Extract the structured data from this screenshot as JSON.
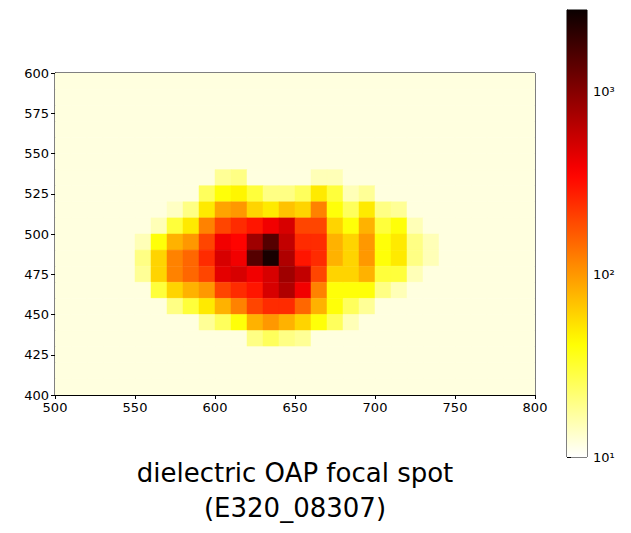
{
  "chart_data": {
    "type": "heatmap",
    "title": "dielectric OAP focal spot\n(E320_08307)",
    "x": [
      505,
      515,
      525,
      535,
      545,
      555,
      565,
      575,
      585,
      595,
      605,
      615,
      625,
      635,
      645,
      655,
      665,
      675,
      685,
      695,
      705,
      715,
      725,
      735,
      745,
      755,
      765,
      775,
      785,
      795
    ],
    "y": [
      595,
      585,
      575,
      565,
      555,
      545,
      535,
      525,
      515,
      505,
      495,
      485,
      475,
      465,
      455,
      445,
      435,
      425,
      415,
      405
    ],
    "z": [
      [
        12,
        12,
        12,
        12,
        12,
        12,
        12,
        12,
        12,
        12,
        12,
        12,
        12,
        12,
        12,
        12,
        12,
        12,
        12,
        12,
        12,
        12,
        12,
        12,
        12,
        12,
        12,
        12,
        12,
        12
      ],
      [
        12,
        12,
        12,
        12,
        12,
        12,
        12,
        12,
        12,
        12,
        12,
        12,
        12,
        12,
        12,
        12,
        12,
        12,
        12,
        12,
        12,
        12,
        12,
        12,
        12,
        12,
        12,
        12,
        12,
        12
      ],
      [
        12,
        12,
        12,
        12,
        12,
        12,
        12,
        12,
        12,
        12,
        12,
        12,
        12,
        12,
        12,
        12,
        12,
        12,
        12,
        12,
        12,
        12,
        12,
        12,
        12,
        12,
        12,
        12,
        12,
        12
      ],
      [
        12,
        12,
        12,
        12,
        12,
        12,
        12,
        12,
        12,
        12,
        12,
        12,
        12,
        12,
        12,
        12,
        12,
        12,
        12,
        12,
        12,
        12,
        12,
        12,
        12,
        12,
        12,
        12,
        12,
        12
      ],
      [
        12,
        12,
        12,
        12,
        12,
        12,
        12,
        12,
        12,
        12,
        12,
        12,
        12,
        12,
        12,
        12,
        12,
        12,
        12,
        12,
        12,
        12,
        12,
        12,
        12,
        12,
        12,
        12,
        12,
        12
      ],
      [
        12,
        12,
        12,
        12,
        12,
        12,
        12,
        12,
        12,
        12,
        12,
        12,
        12,
        12,
        12,
        12,
        12,
        12,
        12,
        12,
        12,
        12,
        12,
        12,
        12,
        12,
        12,
        12,
        12,
        12
      ],
      [
        12,
        12,
        12,
        12,
        12,
        12,
        12,
        12,
        12,
        12,
        18,
        20,
        12,
        12,
        12,
        12,
        15,
        15,
        12,
        12,
        12,
        12,
        12,
        12,
        12,
        12,
        12,
        12,
        12,
        12
      ],
      [
        12,
        12,
        12,
        12,
        12,
        12,
        12,
        12,
        12,
        25,
        40,
        45,
        30,
        20,
        20,
        25,
        50,
        30,
        15,
        18,
        12,
        12,
        12,
        12,
        12,
        12,
        12,
        12,
        12,
        12
      ],
      [
        12,
        12,
        12,
        12,
        12,
        12,
        12,
        14,
        20,
        50,
        90,
        100,
        60,
        50,
        70,
        60,
        120,
        40,
        25,
        50,
        20,
        18,
        12,
        12,
        12,
        12,
        12,
        12,
        12,
        12
      ],
      [
        12,
        12,
        12,
        12,
        12,
        12,
        15,
        30,
        50,
        120,
        200,
        250,
        300,
        400,
        500,
        200,
        200,
        60,
        40,
        80,
        30,
        40,
        15,
        12,
        12,
        12,
        12,
        12,
        12,
        12
      ],
      [
        12,
        12,
        12,
        12,
        12,
        15,
        40,
        80,
        100,
        200,
        400,
        350,
        800,
        1500,
        600,
        250,
        250,
        80,
        60,
        100,
        40,
        50,
        20,
        15,
        12,
        12,
        12,
        12,
        12,
        12
      ],
      [
        12,
        12,
        12,
        12,
        12,
        20,
        60,
        120,
        150,
        250,
        500,
        400,
        1500,
        2500,
        700,
        300,
        250,
        80,
        60,
        100,
        40,
        50,
        20,
        15,
        12,
        12,
        12,
        12,
        12,
        12
      ],
      [
        12,
        12,
        12,
        12,
        12,
        18,
        60,
        120,
        150,
        200,
        450,
        500,
        400,
        500,
        800,
        600,
        200,
        60,
        60,
        80,
        30,
        30,
        15,
        12,
        12,
        12,
        12,
        12,
        12,
        12
      ],
      [
        12,
        12,
        12,
        12,
        12,
        12,
        30,
        60,
        80,
        100,
        200,
        250,
        300,
        500,
        700,
        400,
        120,
        40,
        40,
        40,
        20,
        15,
        12,
        12,
        12,
        12,
        12,
        12,
        12,
        12
      ],
      [
        12,
        12,
        12,
        12,
        12,
        12,
        12,
        20,
        30,
        50,
        80,
        120,
        200,
        250,
        250,
        150,
        80,
        40,
        25,
        18,
        12,
        12,
        12,
        12,
        12,
        12,
        12,
        12,
        12,
        12
      ],
      [
        12,
        12,
        12,
        12,
        12,
        12,
        12,
        12,
        12,
        18,
        25,
        40,
        80,
        100,
        80,
        60,
        40,
        25,
        15,
        12,
        12,
        12,
        12,
        12,
        12,
        12,
        12,
        12,
        12,
        12
      ],
      [
        12,
        12,
        12,
        12,
        12,
        12,
        12,
        12,
        12,
        12,
        12,
        12,
        20,
        25,
        20,
        18,
        12,
        12,
        12,
        12,
        12,
        12,
        12,
        12,
        12,
        12,
        12,
        12,
        12,
        12
      ],
      [
        12,
        12,
        12,
        12,
        12,
        12,
        12,
        12,
        12,
        12,
        12,
        12,
        12,
        12,
        12,
        12,
        12,
        12,
        12,
        12,
        12,
        12,
        12,
        12,
        12,
        12,
        12,
        12,
        12,
        12
      ],
      [
        12,
        12,
        12,
        12,
        12,
        12,
        12,
        12,
        12,
        12,
        12,
        12,
        12,
        12,
        12,
        12,
        12,
        12,
        12,
        12,
        12,
        12,
        12,
        12,
        12,
        12,
        12,
        12,
        12,
        12
      ],
      [
        12,
        12,
        12,
        12,
        12,
        12,
        12,
        12,
        12,
        12,
        12,
        12,
        12,
        12,
        12,
        12,
        12,
        12,
        12,
        12,
        12,
        12,
        12,
        12,
        12,
        12,
        12,
        12,
        12,
        12
      ]
    ],
    "xlim": [
      500,
      800
    ],
    "xticks": [
      500,
      550,
      600,
      650,
      700,
      750,
      800
    ],
    "ylim": [
      400,
      600
    ],
    "yticks": [
      400,
      425,
      450,
      475,
      500,
      525,
      550,
      575,
      600
    ],
    "colorbar": {
      "range": [
        10,
        2800
      ],
      "ticks": [
        {
          "value": 10,
          "label": "10¹"
        },
        {
          "value": 100,
          "label": "10²"
        },
        {
          "value": 1000,
          "label": "10³"
        }
      ]
    },
    "log": true
  }
}
